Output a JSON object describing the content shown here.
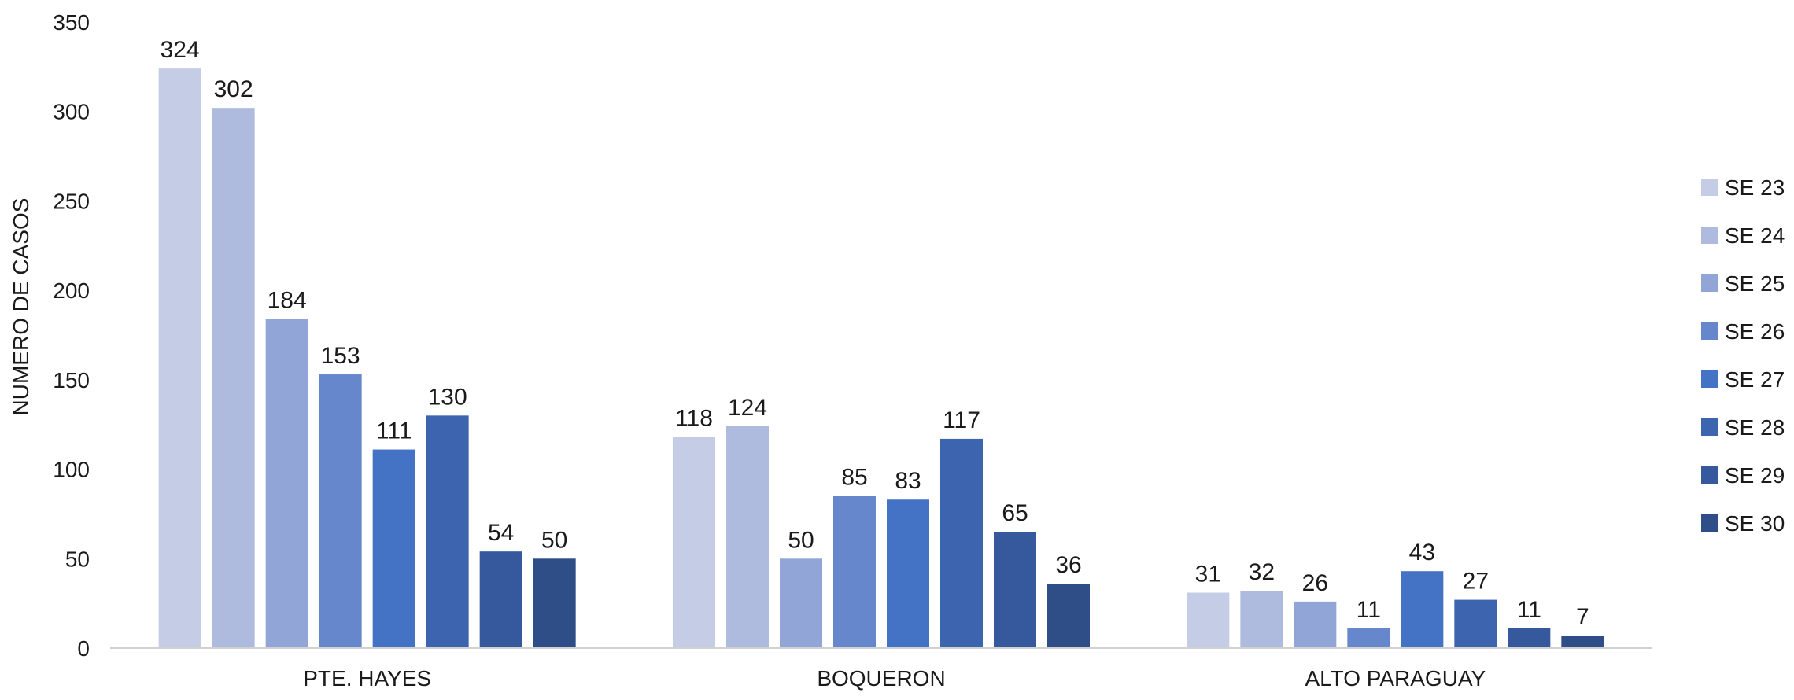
{
  "chart_data": {
    "type": "bar",
    "title": "",
    "xlabel": "",
    "ylabel": "NUMERO DE CASOS",
    "ylim": [
      0,
      350
    ],
    "yticks": [
      0,
      50,
      100,
      150,
      200,
      250,
      300,
      350
    ],
    "grid": false,
    "legend_position": "right",
    "categories": [
      "PTE. HAYES",
      "BOQUERON",
      "ALTO PARAGUAY"
    ],
    "series": [
      {
        "name": "SE 23",
        "color": "#c5cde6",
        "values": [
          324,
          118,
          31
        ]
      },
      {
        "name": "SE 24",
        "color": "#aebbdf",
        "values": [
          302,
          124,
          32
        ]
      },
      {
        "name": "SE 25",
        "color": "#91a5d6",
        "values": [
          184,
          50,
          26
        ]
      },
      {
        "name": "SE 26",
        "color": "#6787cc",
        "values": [
          153,
          85,
          11
        ]
      },
      {
        "name": "SE 27",
        "color": "#4472c4",
        "values": [
          111,
          83,
          43
        ]
      },
      {
        "name": "SE 28",
        "color": "#3d64ae",
        "values": [
          130,
          117,
          27
        ]
      },
      {
        "name": "SE 29",
        "color": "#35599c",
        "values": [
          54,
          65,
          11
        ]
      },
      {
        "name": "SE 30",
        "color": "#2f4d86",
        "values": [
          50,
          36,
          7
        ]
      }
    ]
  }
}
